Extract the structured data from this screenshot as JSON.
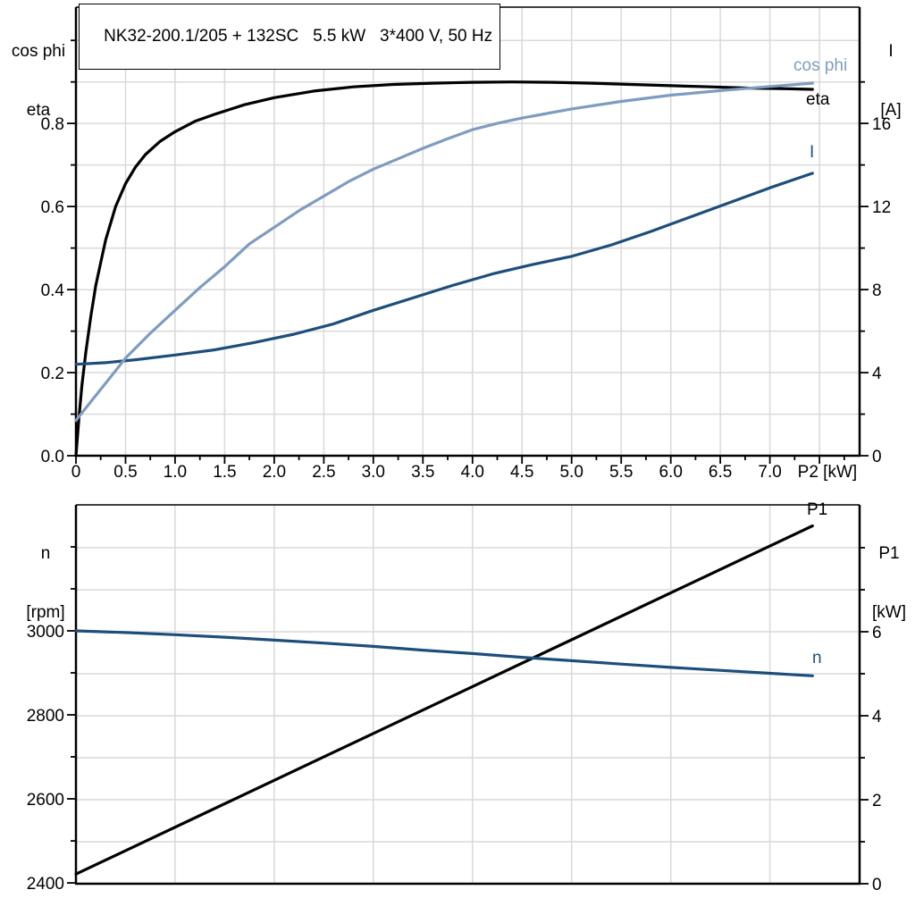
{
  "title": "NK32-200.1/205 + 132SC   5.5 kW   3*400 V, 50 Hz",
  "colors": {
    "eta": "#000000",
    "cos_phi": "#7e9cc0",
    "current": "#1d4e7b",
    "p1": "#000000",
    "n": "#1d4e7b",
    "grid": "#d9d9d9"
  },
  "chart_data": [
    {
      "type": "line",
      "title": "NK32-200.1/205 + 132SC   5.5 kW   3*400 V, 50 Hz",
      "xlabel": "P2 [kW]",
      "xlim": [
        0,
        7.9
      ],
      "grid": true,
      "x_axis": {
        "grid": [
          0.5,
          1,
          1.5,
          2,
          2.5,
          3,
          3.5,
          4,
          4.5,
          5,
          5.5,
          6,
          6.5,
          7,
          7.5
        ],
        "ticks_major": [
          0,
          0.5,
          1,
          1.5,
          2,
          2.5,
          3,
          3.5,
          4,
          4.5,
          5,
          5.5,
          6,
          6.5,
          7,
          7.5
        ],
        "ticks_minor": [
          0.25,
          0.75,
          1.25,
          1.75,
          2.25,
          2.75,
          3.25,
          3.75,
          4.25,
          4.75,
          5.25,
          5.75,
          6.25,
          6.75,
          7.25,
          7.75
        ],
        "tick_labels": [
          {
            "v": 0,
            "t": "0"
          },
          {
            "v": 0.5,
            "t": "0.5"
          },
          {
            "v": 1,
            "t": "1.0"
          },
          {
            "v": 1.5,
            "t": "1.5"
          },
          {
            "v": 2,
            "t": "2.0"
          },
          {
            "v": 2.5,
            "t": "2.5"
          },
          {
            "v": 3,
            "t": "3.0"
          },
          {
            "v": 3.5,
            "t": "3.5"
          },
          {
            "v": 4,
            "t": "4.0"
          },
          {
            "v": 4.5,
            "t": "4.5"
          },
          {
            "v": 5,
            "t": "5.0"
          },
          {
            "v": 5.5,
            "t": "5.5"
          },
          {
            "v": 6,
            "t": "6.0"
          },
          {
            "v": 6.5,
            "t": "6.5"
          },
          {
            "v": 7,
            "t": "7.0"
          }
        ],
        "end_label": "P2 [kW]",
        "end_label_v": 7.58
      },
      "left_axis": {
        "header": [
          "cos phi",
          "eta"
        ],
        "lim": [
          0,
          1.08
        ],
        "grid": [
          0.1,
          0.2,
          0.3,
          0.4,
          0.5,
          0.6,
          0.7,
          0.8,
          0.9,
          1.0
        ],
        "ticks_major": [
          0,
          0.2,
          0.4,
          0.6,
          0.8
        ],
        "ticks_minor": [
          0.1,
          0.3,
          0.5,
          0.7,
          0.9,
          1.0
        ],
        "tick_labels": [
          {
            "v": 0,
            "t": "0.0"
          },
          {
            "v": 0.2,
            "t": "0.2"
          },
          {
            "v": 0.4,
            "t": "0.4"
          },
          {
            "v": 0.6,
            "t": "0.6"
          },
          {
            "v": 0.8,
            "t": "0.8"
          }
        ]
      },
      "right_axis": {
        "header": [
          "I",
          "[A]"
        ],
        "lim": [
          0,
          21.6
        ],
        "grid": [],
        "ticks_major": [
          0,
          4,
          8,
          12,
          16
        ],
        "ticks_minor": [
          2,
          6,
          10,
          14,
          18
        ],
        "tick_labels": [
          {
            "v": 0,
            "t": "0"
          },
          {
            "v": 4,
            "t": "4"
          },
          {
            "v": 8,
            "t": "8"
          },
          {
            "v": 12,
            "t": "12"
          },
          {
            "v": 16,
            "t": "16"
          }
        ]
      },
      "series": [
        {
          "name": "eta",
          "axis": "left",
          "color": "#000000",
          "points": [
            [
              0,
              0
            ],
            [
              0.03,
              0.09
            ],
            [
              0.06,
              0.17
            ],
            [
              0.1,
              0.25
            ],
            [
              0.15,
              0.335
            ],
            [
              0.2,
              0.41
            ],
            [
              0.25,
              0.465
            ],
            [
              0.3,
              0.52
            ],
            [
              0.4,
              0.6
            ],
            [
              0.5,
              0.655
            ],
            [
              0.6,
              0.695
            ],
            [
              0.7,
              0.725
            ],
            [
              0.85,
              0.757
            ],
            [
              1,
              0.78
            ],
            [
              1.2,
              0.805
            ],
            [
              1.4,
              0.822
            ],
            [
              1.7,
              0.845
            ],
            [
              2,
              0.862
            ],
            [
              2.4,
              0.878
            ],
            [
              2.8,
              0.888
            ],
            [
              3.2,
              0.894
            ],
            [
              3.6,
              0.897
            ],
            [
              4,
              0.899
            ],
            [
              4.4,
              0.9
            ],
            [
              4.8,
              0.899
            ],
            [
              5.2,
              0.897
            ],
            [
              5.6,
              0.894
            ],
            [
              6,
              0.891
            ],
            [
              6.4,
              0.888
            ],
            [
              6.8,
              0.885
            ],
            [
              7.1,
              0.884
            ],
            [
              7.43,
              0.882
            ]
          ]
        },
        {
          "name": "I",
          "axis": "right",
          "color": "#1d4e7b",
          "points": [
            [
              0,
              4.4
            ],
            [
              0.3,
              4.48
            ],
            [
              0.6,
              4.62
            ],
            [
              1,
              4.85
            ],
            [
              1.4,
              5.1
            ],
            [
              1.8,
              5.45
            ],
            [
              2.2,
              5.85
            ],
            [
              2.6,
              6.35
            ],
            [
              3,
              7.0
            ],
            [
              3.4,
              7.6
            ],
            [
              3.8,
              8.2
            ],
            [
              4.2,
              8.75
            ],
            [
              4.6,
              9.2
            ],
            [
              5,
              9.6
            ],
            [
              5.4,
              10.15
            ],
            [
              5.8,
              10.8
            ],
            [
              6.2,
              11.5
            ],
            [
              6.6,
              12.2
            ],
            [
              7,
              12.9
            ],
            [
              7.43,
              13.6
            ]
          ]
        },
        {
          "name": "cos phi",
          "axis": "left",
          "color": "#7e9cc0",
          "points": [
            [
              0,
              0.085
            ],
            [
              0.15,
              0.13
            ],
            [
              0.3,
              0.175
            ],
            [
              0.5,
              0.235
            ],
            [
              0.75,
              0.295
            ],
            [
              1,
              0.35
            ],
            [
              1.25,
              0.405
            ],
            [
              1.5,
              0.455
            ],
            [
              1.75,
              0.51
            ],
            [
              2,
              0.55
            ],
            [
              2.25,
              0.59
            ],
            [
              2.5,
              0.625
            ],
            [
              2.75,
              0.66
            ],
            [
              3,
              0.69
            ],
            [
              3.25,
              0.715
            ],
            [
              3.5,
              0.74
            ],
            [
              3.75,
              0.763
            ],
            [
              4,
              0.785
            ],
            [
              4.25,
              0.8
            ],
            [
              4.5,
              0.813
            ],
            [
              4.75,
              0.824
            ],
            [
              5,
              0.835
            ],
            [
              5.5,
              0.853
            ],
            [
              6,
              0.868
            ],
            [
              6.5,
              0.879
            ],
            [
              7,
              0.889
            ],
            [
              7.43,
              0.897
            ]
          ]
        }
      ]
    },
    {
      "type": "line",
      "title": "",
      "xlabel": "P2 [kW]",
      "xlim": [
        0,
        7.9
      ],
      "grid": true,
      "x_axis": {
        "grid": [
          1,
          2,
          3,
          4,
          5,
          6,
          7
        ],
        "ticks_major": [],
        "ticks_minor": [],
        "tick_labels": []
      },
      "left_axis": {
        "header": [
          "n",
          "[rpm]"
        ],
        "lim": [
          2398,
          3300
        ],
        "grid": [],
        "ticks_major": [
          2400,
          2600,
          2800,
          3000
        ],
        "ticks_minor": [
          2500,
          2700,
          2900,
          3100,
          3200
        ],
        "tick_labels": [
          {
            "v": 2400,
            "t": "2400"
          },
          {
            "v": 2600,
            "t": "2600"
          },
          {
            "v": 2800,
            "t": "2800"
          },
          {
            "v": 3000,
            "t": "3000"
          }
        ]
      },
      "right_axis": {
        "header": [
          "P1",
          "[kW]"
        ],
        "lim": [
          0,
          9.02
        ],
        "grid": [
          1,
          2,
          3,
          4,
          5,
          6,
          7,
          8
        ],
        "ticks_major": [
          0,
          2,
          4,
          6
        ],
        "ticks_minor": [
          1,
          3,
          5,
          7,
          8
        ],
        "tick_labels": [
          {
            "v": 0,
            "t": "0"
          },
          {
            "v": 2,
            "t": "2"
          },
          {
            "v": 4,
            "t": "4"
          },
          {
            "v": 6,
            "t": "6"
          }
        ]
      },
      "series": [
        {
          "name": "P1",
          "axis": "right",
          "color": "#000000",
          "points": [
            [
              0,
              0.23
            ],
            [
              7.43,
              8.52
            ]
          ]
        },
        {
          "name": "n",
          "axis": "left",
          "color": "#1d4e7b",
          "points": [
            [
              0,
              3000
            ],
            [
              0.5,
              2996
            ],
            [
              1,
              2991
            ],
            [
              1.5,
              2985
            ],
            [
              2,
              2978
            ],
            [
              2.5,
              2971
            ],
            [
              3,
              2963
            ],
            [
              3.5,
              2954
            ],
            [
              4,
              2946
            ],
            [
              4.5,
              2937
            ],
            [
              5,
              2929
            ],
            [
              5.5,
              2921
            ],
            [
              6,
              2913
            ],
            [
              6.5,
              2906
            ],
            [
              7,
              2899
            ],
            [
              7.43,
              2893
            ]
          ]
        }
      ]
    }
  ]
}
